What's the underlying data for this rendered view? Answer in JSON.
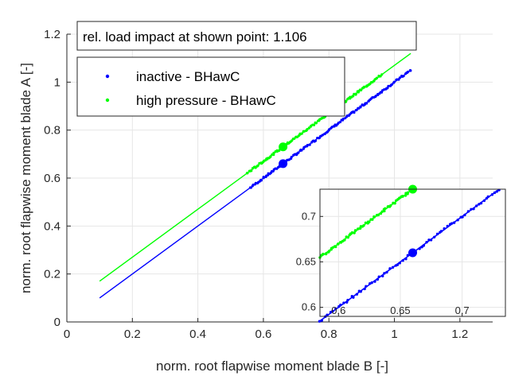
{
  "chart_data": {
    "type": "line",
    "xlabel": "norm. root flapwise moment blade B [-]",
    "ylabel": "norm. root flapwise moment blade A [-]",
    "xlim": [
      0,
      1.3
    ],
    "ylim": [
      0,
      1.2
    ],
    "xticks": [
      "0",
      "0.2",
      "0.4",
      "0.6",
      "0.8",
      "1",
      "1.2"
    ],
    "yticks": [
      "0",
      "0.2",
      "0.4",
      "0.6",
      "0.8",
      "1",
      "1.2"
    ],
    "grid": true,
    "annotation": "rel. load impact at shown point: 1.106",
    "legend_position": "top-left",
    "series": [
      {
        "name": "inactive - BHawC",
        "color": "#0000ff",
        "line": {
          "x": [
            0.1,
            1.05
          ],
          "y": [
            0.1,
            1.05
          ]
        },
        "scatter_range": {
          "x": [
            0.56,
            1.05
          ]
        },
        "highlight": {
          "x": 0.66,
          "y": 0.66
        }
      },
      {
        "name": "high pressure - BHawC",
        "color": "#00ff00",
        "line": {
          "x": [
            0.1,
            1.05
          ],
          "y": [
            0.17,
            1.12
          ]
        },
        "scatter_range": {
          "x": [
            0.55,
            0.96
          ]
        },
        "highlight": {
          "x": 0.66,
          "y": 0.73
        }
      }
    ],
    "inset": {
      "xlim": [
        0.585,
        0.735
      ],
      "ylim": [
        0.59,
        0.73
      ],
      "xticks": [
        "0.6",
        "0.65",
        "0.7"
      ],
      "yticks": [
        "0.6",
        "0.65",
        "0.7"
      ]
    }
  }
}
